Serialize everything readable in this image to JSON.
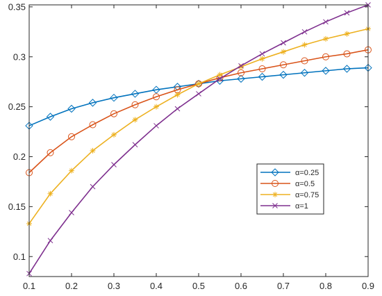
{
  "chart_data": {
    "type": "line",
    "title": "",
    "xlabel": "",
    "ylabel": "",
    "xlim": [
      0.1,
      0.9
    ],
    "ylim": [
      0.08,
      0.352
    ],
    "xticks": [
      "0.1",
      "0.2",
      "0.3",
      "0.4",
      "0.5",
      "0.6",
      "0.7",
      "0.8",
      "0.9"
    ],
    "yticks": [
      "0.1",
      "0.15",
      "0.2",
      "0.25",
      "0.3",
      "0.35"
    ],
    "grid": false,
    "legend_position": "inside-right",
    "x": [
      0.1,
      0.15,
      0.2,
      0.25,
      0.3,
      0.35,
      0.4,
      0.45,
      0.5,
      0.55,
      0.6,
      0.65,
      0.7,
      0.75,
      0.8,
      0.85,
      0.9
    ],
    "series": [
      {
        "name": "α=0.25",
        "color": "#0072BD",
        "marker": "diamond",
        "values": [
          0.231,
          0.24,
          0.248,
          0.254,
          0.259,
          0.263,
          0.267,
          0.27,
          0.273,
          0.276,
          0.278,
          0.28,
          0.282,
          0.284,
          0.286,
          0.288,
          0.289
        ]
      },
      {
        "name": "α=0.5",
        "color": "#D95319",
        "marker": "circle",
        "values": [
          0.184,
          0.204,
          0.22,
          0.232,
          0.243,
          0.252,
          0.26,
          0.267,
          0.273,
          0.279,
          0.284,
          0.288,
          0.292,
          0.296,
          0.3,
          0.303,
          0.307
        ]
      },
      {
        "name": "α=0.75",
        "color": "#EDB120",
        "marker": "star",
        "values": [
          0.133,
          0.163,
          0.186,
          0.206,
          0.222,
          0.237,
          0.25,
          0.262,
          0.273,
          0.282,
          0.29,
          0.298,
          0.305,
          0.312,
          0.318,
          0.323,
          0.328
        ]
      },
      {
        "name": "α=1",
        "color": "#7E2F8E",
        "marker": "x",
        "values": [
          0.083,
          0.116,
          0.144,
          0.17,
          0.192,
          0.212,
          0.231,
          0.248,
          0.263,
          0.278,
          0.291,
          0.303,
          0.314,
          0.325,
          0.335,
          0.344,
          0.352
        ]
      }
    ]
  }
}
